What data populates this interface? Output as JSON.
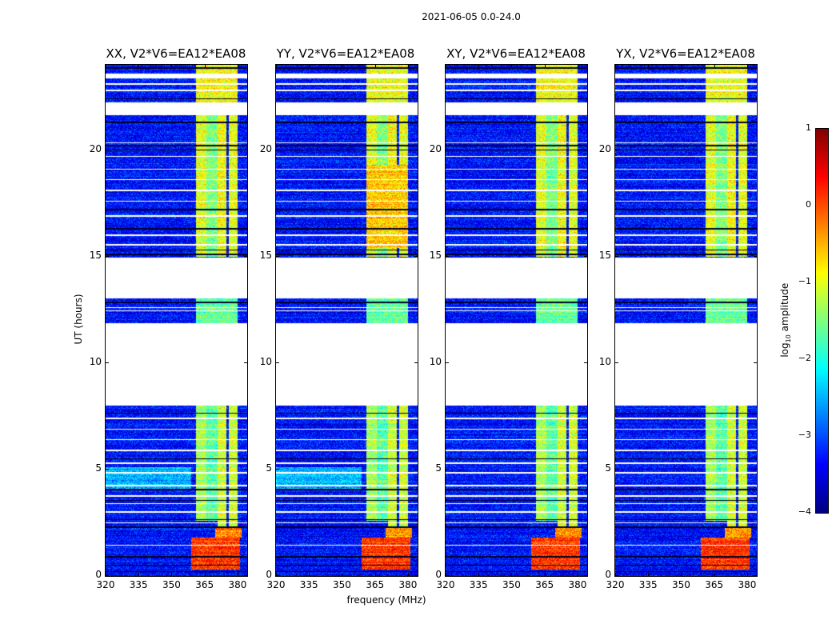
{
  "chart_data": {
    "type": "heatmap",
    "title": "2021-06-05 0.0-24.0",
    "xlabel": "frequency (MHz)",
    "ylabel": "UT (hours)",
    "xlim": [
      320,
      384.4
    ],
    "ylim": [
      0,
      24
    ],
    "xticks": [
      320,
      335,
      350,
      365,
      380
    ],
    "yticks": [
      0,
      5,
      10,
      15,
      20
    ],
    "colorbar": {
      "label_main": "log",
      "label_sub": "10",
      "label_rest": " amplitude",
      "colormap": "jet",
      "range": [
        -4,
        1
      ],
      "ticks": [
        1,
        0,
        -1,
        -2,
        -3,
        -4
      ],
      "tick_labels": [
        "1",
        "0",
        "−1",
        "−2",
        "−3",
        "−4"
      ]
    },
    "background_log_amp": -3.3,
    "flagged_hours": [
      [
        8.0,
        11.85
      ],
      [
        13.05,
        14.95
      ],
      [
        21.65,
        22.25
      ],
      [
        23.35,
        23.6
      ]
    ],
    "flag_lines_hours": [
      1.45,
      2.5,
      3.0,
      3.4,
      3.75,
      4.25,
      4.85,
      5.3,
      5.9,
      6.4,
      6.9,
      7.4,
      12.45,
      12.6,
      15.55,
      16.0,
      16.9,
      17.6,
      18.1,
      18.6,
      19.1,
      19.7,
      20.35,
      22.8,
      23.1
    ],
    "dark_lines_hours": [
      0.2,
      0.5,
      0.9,
      2.3,
      2.65,
      3.55,
      4.05,
      5.5,
      7.65,
      12.85,
      15.1,
      15.3,
      16.3,
      17.2,
      20.0,
      20.2,
      21.3,
      22.4,
      23.85
    ],
    "common_regions": [
      {
        "hours": [
          0.3,
          1.8
        ],
        "freq": [
          359,
          381
        ],
        "log_amp": 0.1
      },
      {
        "hours": [
          1.8,
          2.3
        ],
        "freq": [
          370,
          382
        ],
        "log_amp": -0.3
      },
      {
        "hours": [
          2.6,
          8.0
        ],
        "freq": [
          361,
          366
        ],
        "log_amp": -1.3
      },
      {
        "hours": [
          2.6,
          8.0
        ],
        "freq": [
          366,
          371
        ],
        "log_amp": -1.7
      },
      {
        "hours": [
          2.3,
          8.0
        ],
        "freq": [
          371,
          375
        ],
        "log_amp": -1.1
      },
      {
        "hours": [
          2.3,
          8.0
        ],
        "freq": [
          376,
          380
        ],
        "log_amp": -1.1
      },
      {
        "hours": [
          11.85,
          13.05
        ],
        "freq": [
          361,
          380
        ],
        "log_amp": -1.6
      },
      {
        "hours": [
          15.0,
          21.65
        ],
        "freq": [
          361,
          366
        ],
        "log_amp": -1.0
      },
      {
        "hours": [
          15.0,
          21.65
        ],
        "freq": [
          366,
          371
        ],
        "log_amp": -1.5
      },
      {
        "hours": [
          15.0,
          21.65
        ],
        "freq": [
          371,
          375
        ],
        "log_amp": -0.9
      },
      {
        "hours": [
          15.0,
          21.65
        ],
        "freq": [
          376,
          380
        ],
        "log_amp": -1.0
      },
      {
        "hours": [
          22.25,
          24
        ],
        "freq": [
          361,
          380
        ],
        "log_amp": -0.9
      }
    ],
    "panels": [
      {
        "title": "XX, V2*V6=EA12*EA08",
        "regions": [
          {
            "hours": [
              4.1,
              5.1
            ],
            "freq": [
              320,
              359
            ],
            "log_amp": -2.5
          }
        ]
      },
      {
        "title": "YY, V2*V6=EA12*EA08",
        "regions": [
          {
            "hours": [
              4.1,
              5.1
            ],
            "freq": [
              320,
              359
            ],
            "log_amp": -2.5
          },
          {
            "hours": [
              15.4,
              19.3
            ],
            "freq": [
              361,
              380
            ],
            "log_amp": -0.6
          }
        ]
      },
      {
        "title": "XY, V2*V6=EA12*EA08",
        "regions": []
      },
      {
        "title": "YX, V2*V6=EA12*EA08",
        "regions": []
      }
    ]
  }
}
